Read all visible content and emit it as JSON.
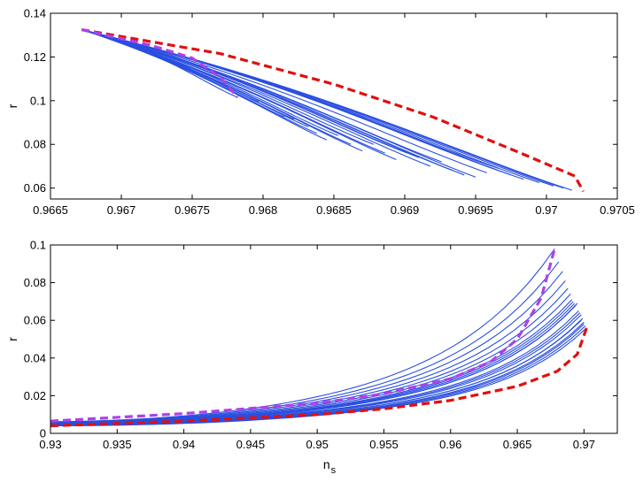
{
  "chart_data": [
    {
      "type": "line",
      "title": "",
      "xlabel": "",
      "ylabel": "r",
      "xlim": [
        0.9665,
        0.9705
      ],
      "ylim": [
        0.055,
        0.14
      ],
      "xticks": [
        0.9665,
        0.967,
        0.9675,
        0.968,
        0.9685,
        0.969,
        0.9695,
        0.97,
        0.9705
      ],
      "xtick_labels": [
        "0.9665",
        "0.967",
        "0.9675",
        "0.968",
        "0.9685",
        "0.969",
        "0.9695",
        "0.97",
        "0.9705"
      ],
      "yticks": [
        0.06,
        0.08,
        0.1,
        0.12,
        0.14
      ],
      "ytick_labels": [
        "0.06",
        "0.08",
        "0.1",
        "0.12",
        "0.14"
      ],
      "grid": false,
      "colors": {
        "family": "#2a4fe0",
        "lower_bound": "#e01010",
        "upper_bound": "#b040e8"
      },
      "bounds": [
        {
          "role": "lower_bound",
          "style": "dashed",
          "x": [
            0.96672,
            0.9677,
            0.9685,
            0.9692,
            0.9698,
            0.9702,
            0.97026
          ],
          "y": [
            0.1325,
            0.1215,
            0.1075,
            0.0925,
            0.0765,
            0.0655,
            0.0585
          ]
        },
        {
          "role": "upper_bound",
          "style": "dashed",
          "x": [
            0.96672,
            0.9672,
            0.9675,
            0.9677,
            0.96782
          ],
          "y": [
            0.1325,
            0.1255,
            0.1195,
            0.1105,
            0.1015
          ]
        }
      ],
      "family": {
        "start": [
          0.96672,
          0.1325
        ],
        "end_points": [
          [
            0.96782,
            0.1015
          ],
          [
            0.96797,
            0.0995
          ],
          [
            0.96805,
            0.0955
          ],
          [
            0.96815,
            0.0925
          ],
          [
            0.96822,
            0.0915
          ],
          [
            0.96832,
            0.088
          ],
          [
            0.96838,
            0.085
          ],
          [
            0.96845,
            0.082
          ],
          [
            0.96853,
            0.084
          ],
          [
            0.96862,
            0.08
          ],
          [
            0.9687,
            0.077
          ],
          [
            0.96878,
            0.08
          ],
          [
            0.96886,
            0.076
          ],
          [
            0.96894,
            0.073
          ],
          [
            0.96902,
            0.076
          ],
          [
            0.9691,
            0.074
          ],
          [
            0.96918,
            0.07
          ],
          [
            0.96926,
            0.072
          ],
          [
            0.96934,
            0.068
          ],
          [
            0.96942,
            0.066
          ],
          [
            0.9695,
            0.065
          ],
          [
            0.96958,
            0.067
          ],
          [
            0.96966,
            0.069
          ],
          [
            0.96975,
            0.066
          ],
          [
            0.96984,
            0.064
          ],
          [
            0.96995,
            0.0625
          ],
          [
            0.97005,
            0.061
          ],
          [
            0.97012,
            0.06
          ],
          [
            0.97018,
            0.059
          ]
        ]
      }
    },
    {
      "type": "line",
      "title": "",
      "xlabel": "n",
      "xlabel_subscript": "s",
      "ylabel": "r",
      "xlim": [
        0.93,
        0.9725
      ],
      "ylim": [
        0,
        0.1
      ],
      "xticks": [
        0.93,
        0.935,
        0.94,
        0.945,
        0.95,
        0.955,
        0.96,
        0.965,
        0.97
      ],
      "xtick_labels": [
        "0.93",
        "0.935",
        "0.94",
        "0.945",
        "0.95",
        "0.955",
        "0.96",
        "0.965",
        "0.97"
      ],
      "yticks": [
        0,
        0.02,
        0.04,
        0.06,
        0.08,
        0.1
      ],
      "ytick_labels": [
        "0",
        "0.02",
        "0.04",
        "0.06",
        "0.08",
        "0.1"
      ],
      "grid": false,
      "colors": {
        "family": "#2a4fe0",
        "lower_bound": "#e01010",
        "upper_bound": "#b040e8"
      },
      "bounds": [
        {
          "role": "upper_bound",
          "style": "dashed",
          "x": [
            0.93,
            0.94,
            0.95,
            0.955,
            0.96,
            0.963,
            0.965,
            0.9668,
            0.9678
          ],
          "y": [
            0.0065,
            0.0105,
            0.016,
            0.021,
            0.029,
            0.038,
            0.05,
            0.072,
            0.098
          ]
        },
        {
          "role": "lower_bound",
          "style": "dashed",
          "x": [
            0.93,
            0.94,
            0.95,
            0.955,
            0.96,
            0.965,
            0.968,
            0.9695,
            0.9702
          ],
          "y": [
            0.004,
            0.0065,
            0.01,
            0.013,
            0.0175,
            0.025,
            0.033,
            0.042,
            0.056
          ]
        }
      ],
      "family": {
        "start_x": 0.93,
        "end_points": [
          [
            0.9678,
            0.098
          ],
          [
            0.9681,
            0.091
          ],
          [
            0.9684,
            0.086
          ],
          [
            0.9686,
            0.081
          ],
          [
            0.9688,
            0.077
          ],
          [
            0.969,
            0.074
          ],
          [
            0.9691,
            0.071
          ],
          [
            0.9692,
            0.07
          ],
          [
            0.9693,
            0.069
          ],
          [
            0.9694,
            0.068
          ],
          [
            0.9695,
            0.069
          ],
          [
            0.9696,
            0.065
          ],
          [
            0.9697,
            0.064
          ],
          [
            0.9698,
            0.063
          ],
          [
            0.9698,
            0.06
          ],
          [
            0.9699,
            0.061
          ],
          [
            0.97,
            0.059
          ],
          [
            0.97,
            0.058
          ],
          [
            0.9701,
            0.057
          ],
          [
            0.9702,
            0.056
          ]
        ]
      }
    }
  ]
}
